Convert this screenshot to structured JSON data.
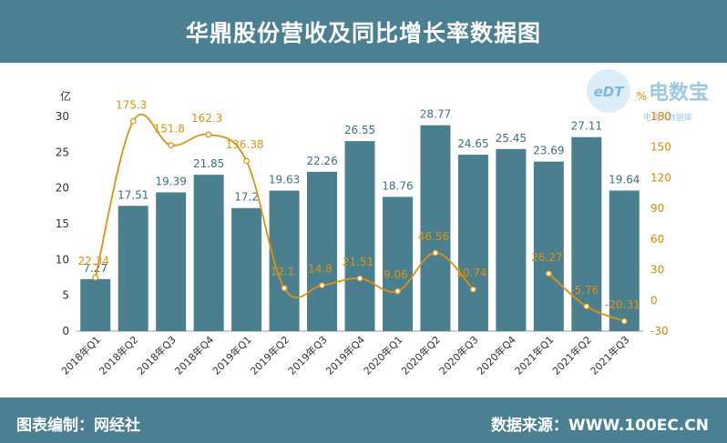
{
  "header": {
    "title": "华鼎股份营收及同比增长率数据图"
  },
  "footer": {
    "editor": "图表编制：网经社",
    "source": "数据来源：WWW.100EC.CN"
  },
  "watermark": {
    "logo_text": "eDT",
    "brand": "电数宝",
    "sub": "电商大数据库"
  },
  "colors": {
    "header_bg": "#4a8091",
    "bar": "#4a7f8f",
    "line": "#e0920a",
    "text": "#333333"
  },
  "chart_data": {
    "type": "bar",
    "title": "华鼎股份营收及同比增长率数据图",
    "categories": [
      "2018年Q1",
      "2018年Q2",
      "2018年Q3",
      "2018年Q4",
      "2019年Q1",
      "2019年Q2",
      "2019年Q3",
      "2019年Q4",
      "2020年Q1",
      "2020年Q2",
      "2020年Q3",
      "2020年Q4",
      "2021年Q1",
      "2021年Q2",
      "2021年Q3"
    ],
    "left_axis": {
      "unit": "亿",
      "ylim": [
        0,
        30
      ],
      "ticks": [
        0,
        5,
        10,
        15,
        20,
        25,
        30
      ]
    },
    "right_axis": {
      "unit": "%",
      "ylim": [
        -30,
        180
      ],
      "ticks": [
        -30,
        0,
        30,
        60,
        90,
        120,
        150,
        180
      ]
    },
    "series": [
      {
        "type": "bar",
        "axis": "left",
        "values": [
          7.27,
          17.51,
          19.39,
          21.85,
          17.2,
          19.63,
          22.26,
          26.55,
          18.76,
          28.77,
          24.65,
          25.45,
          23.69,
          27.11,
          19.64
        ]
      },
      {
        "type": "line",
        "axis": "right",
        "values": [
          22.34,
          175.3,
          151.8,
          162.3,
          136.38,
          12.1,
          14.8,
          21.51,
          9.06,
          46.56,
          10.74,
          null,
          26.27,
          -5.76,
          -20.31
        ]
      }
    ],
    "bar_labels": [
      "7.27",
      "17.51",
      "19.39",
      "21.85",
      "17.2",
      "19.63",
      "22.26",
      "26.55",
      "18.76",
      "28.77",
      "24.65",
      "25.45",
      "23.69",
      "27.11",
      "19.64"
    ],
    "line_labels": [
      "22.34",
      "175.3",
      "151.8",
      "162.3",
      "136.38",
      "12.1",
      "14.8",
      "21.51",
      "9.06",
      "46.56",
      "10.74",
      "",
      "26.27",
      "-5.76",
      "-20.31"
    ],
    "grid": false,
    "legend": "none"
  }
}
